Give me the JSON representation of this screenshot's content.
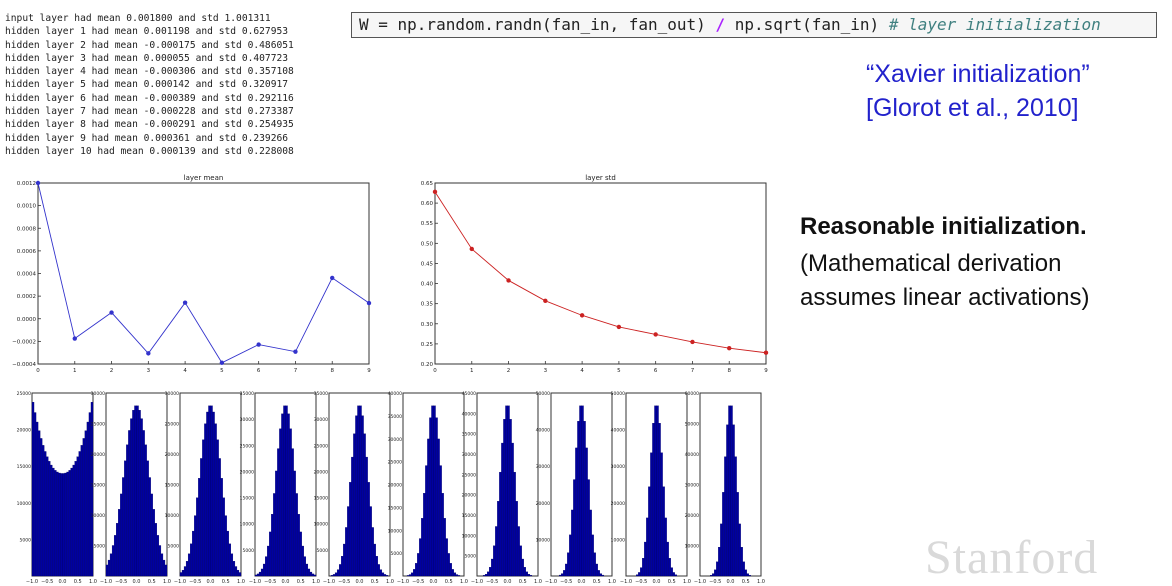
{
  "log_lines": [
    "input layer had mean 0.001800 and std 1.001311",
    "hidden layer 1 had mean 0.001198 and std 0.627953",
    "hidden layer 2 had mean -0.000175 and std 0.486051",
    "hidden layer 3 had mean 0.000055 and std 0.407723",
    "hidden layer 4 had mean -0.000306 and std 0.357108",
    "hidden layer 5 had mean 0.000142 and std 0.320917",
    "hidden layer 6 had mean -0.000389 and std 0.292116",
    "hidden layer 7 had mean -0.000228 and std 0.273387",
    "hidden layer 8 had mean -0.000291 and std 0.254935",
    "hidden layer 9 had mean 0.000361 and std 0.239266",
    "hidden layer 10 had mean 0.000139 and std 0.228008"
  ],
  "code": {
    "part1": "W = np.random.randn(fan_in, fan_out) ",
    "op": "/",
    "part2": " np.sqrt(fan_in) ",
    "comment": "# layer initialization"
  },
  "citation": {
    "line1": "“Xavier initialization”",
    "line2": "[Glorot et al., 2010]"
  },
  "notes": {
    "heading": "Reasonable initialization.",
    "line1": "(Mathematical derivation",
    "line2": "assumes linear activations)"
  },
  "watermark": "Stanford",
  "colors": {
    "mean_line": "#3333cc",
    "std_line": "#cc2222",
    "hist_fill": "#0000a0",
    "link": "#2222cc"
  },
  "chart_data": [
    {
      "type": "line",
      "title": "layer mean",
      "x": [
        0,
        1,
        2,
        3,
        4,
        5,
        6,
        7,
        8,
        9
      ],
      "values": [
        0.0012,
        -0.000175,
        5.5e-05,
        -0.000306,
        0.000142,
        -0.000389,
        -0.000228,
        -0.000291,
        0.000361,
        0.000139
      ],
      "xlim": [
        0,
        9
      ],
      "ylim": [
        -0.0004,
        0.0012
      ],
      "yticks": [
        "−0.0004",
        "−0.0002",
        "0.0000",
        "0.0002",
        "0.0004",
        "0.0006",
        "0.0008",
        "0.0010",
        "0.0012"
      ],
      "xticks": [
        "0",
        "1",
        "2",
        "3",
        "4",
        "5",
        "6",
        "7",
        "8",
        "9"
      ]
    },
    {
      "type": "line",
      "title": "layer std",
      "x": [
        0,
        1,
        2,
        3,
        4,
        5,
        6,
        7,
        8,
        9
      ],
      "values": [
        0.627953,
        0.486051,
        0.407723,
        0.357108,
        0.320917,
        0.292116,
        0.273387,
        0.254935,
        0.239266,
        0.228008
      ],
      "xlim": [
        0,
        9
      ],
      "ylim": [
        0.2,
        0.65
      ],
      "yticks": [
        "0.20",
        "0.25",
        "0.30",
        "0.35",
        "0.40",
        "0.45",
        "0.50",
        "0.55",
        "0.60",
        "0.65"
      ],
      "xticks": [
        "0",
        "1",
        "2",
        "3",
        "4",
        "5",
        "6",
        "7",
        "8",
        "9"
      ]
    },
    {
      "type": "histogram",
      "panels": [
        {
          "layer": 1,
          "std": 0.627953,
          "ymax": 25000,
          "yticks": [
            "5000",
            "10000",
            "15000",
            "20000",
            "25000"
          ]
        },
        {
          "layer": 2,
          "std": 0.486051,
          "ymax": 30000,
          "yticks": [
            "5000",
            "10000",
            "15000",
            "20000",
            "25000",
            "30000"
          ]
        },
        {
          "layer": 3,
          "std": 0.407723,
          "ymax": 30000,
          "yticks": [
            "5000",
            "10000",
            "15000",
            "20000",
            "25000",
            "30000"
          ]
        },
        {
          "layer": 4,
          "std": 0.357108,
          "ymax": 35000,
          "yticks": [
            "5000",
            "10000",
            "15000",
            "20000",
            "25000",
            "30000",
            "35000"
          ]
        },
        {
          "layer": 5,
          "std": 0.320917,
          "ymax": 35000,
          "yticks": [
            "5000",
            "10000",
            "15000",
            "20000",
            "25000",
            "30000",
            "35000"
          ]
        },
        {
          "layer": 6,
          "std": 0.292116,
          "ymax": 40000,
          "yticks": [
            "5000",
            "10000",
            "15000",
            "20000",
            "25000",
            "30000",
            "35000",
            "40000"
          ]
        },
        {
          "layer": 7,
          "std": 0.273387,
          "ymax": 45000,
          "yticks": [
            "5000",
            "10000",
            "15000",
            "20000",
            "25000",
            "30000",
            "35000",
            "40000",
            "45000"
          ]
        },
        {
          "layer": 8,
          "std": 0.254935,
          "ymax": 50000,
          "yticks": [
            "10000",
            "20000",
            "30000",
            "40000",
            "50000"
          ]
        },
        {
          "layer": 9,
          "std": 0.239266,
          "ymax": 50000,
          "yticks": [
            "10000",
            "20000",
            "30000",
            "40000",
            "50000"
          ]
        },
        {
          "layer": 10,
          "std": 0.228008,
          "ymax": 60000,
          "yticks": [
            "10000",
            "20000",
            "30000",
            "40000",
            "50000",
            "60000"
          ]
        }
      ],
      "xlim": [
        -1.0,
        1.0
      ],
      "xticks": [
        "−1.0",
        "−0.5",
        "0.0",
        "0.5",
        "1.0"
      ]
    }
  ]
}
